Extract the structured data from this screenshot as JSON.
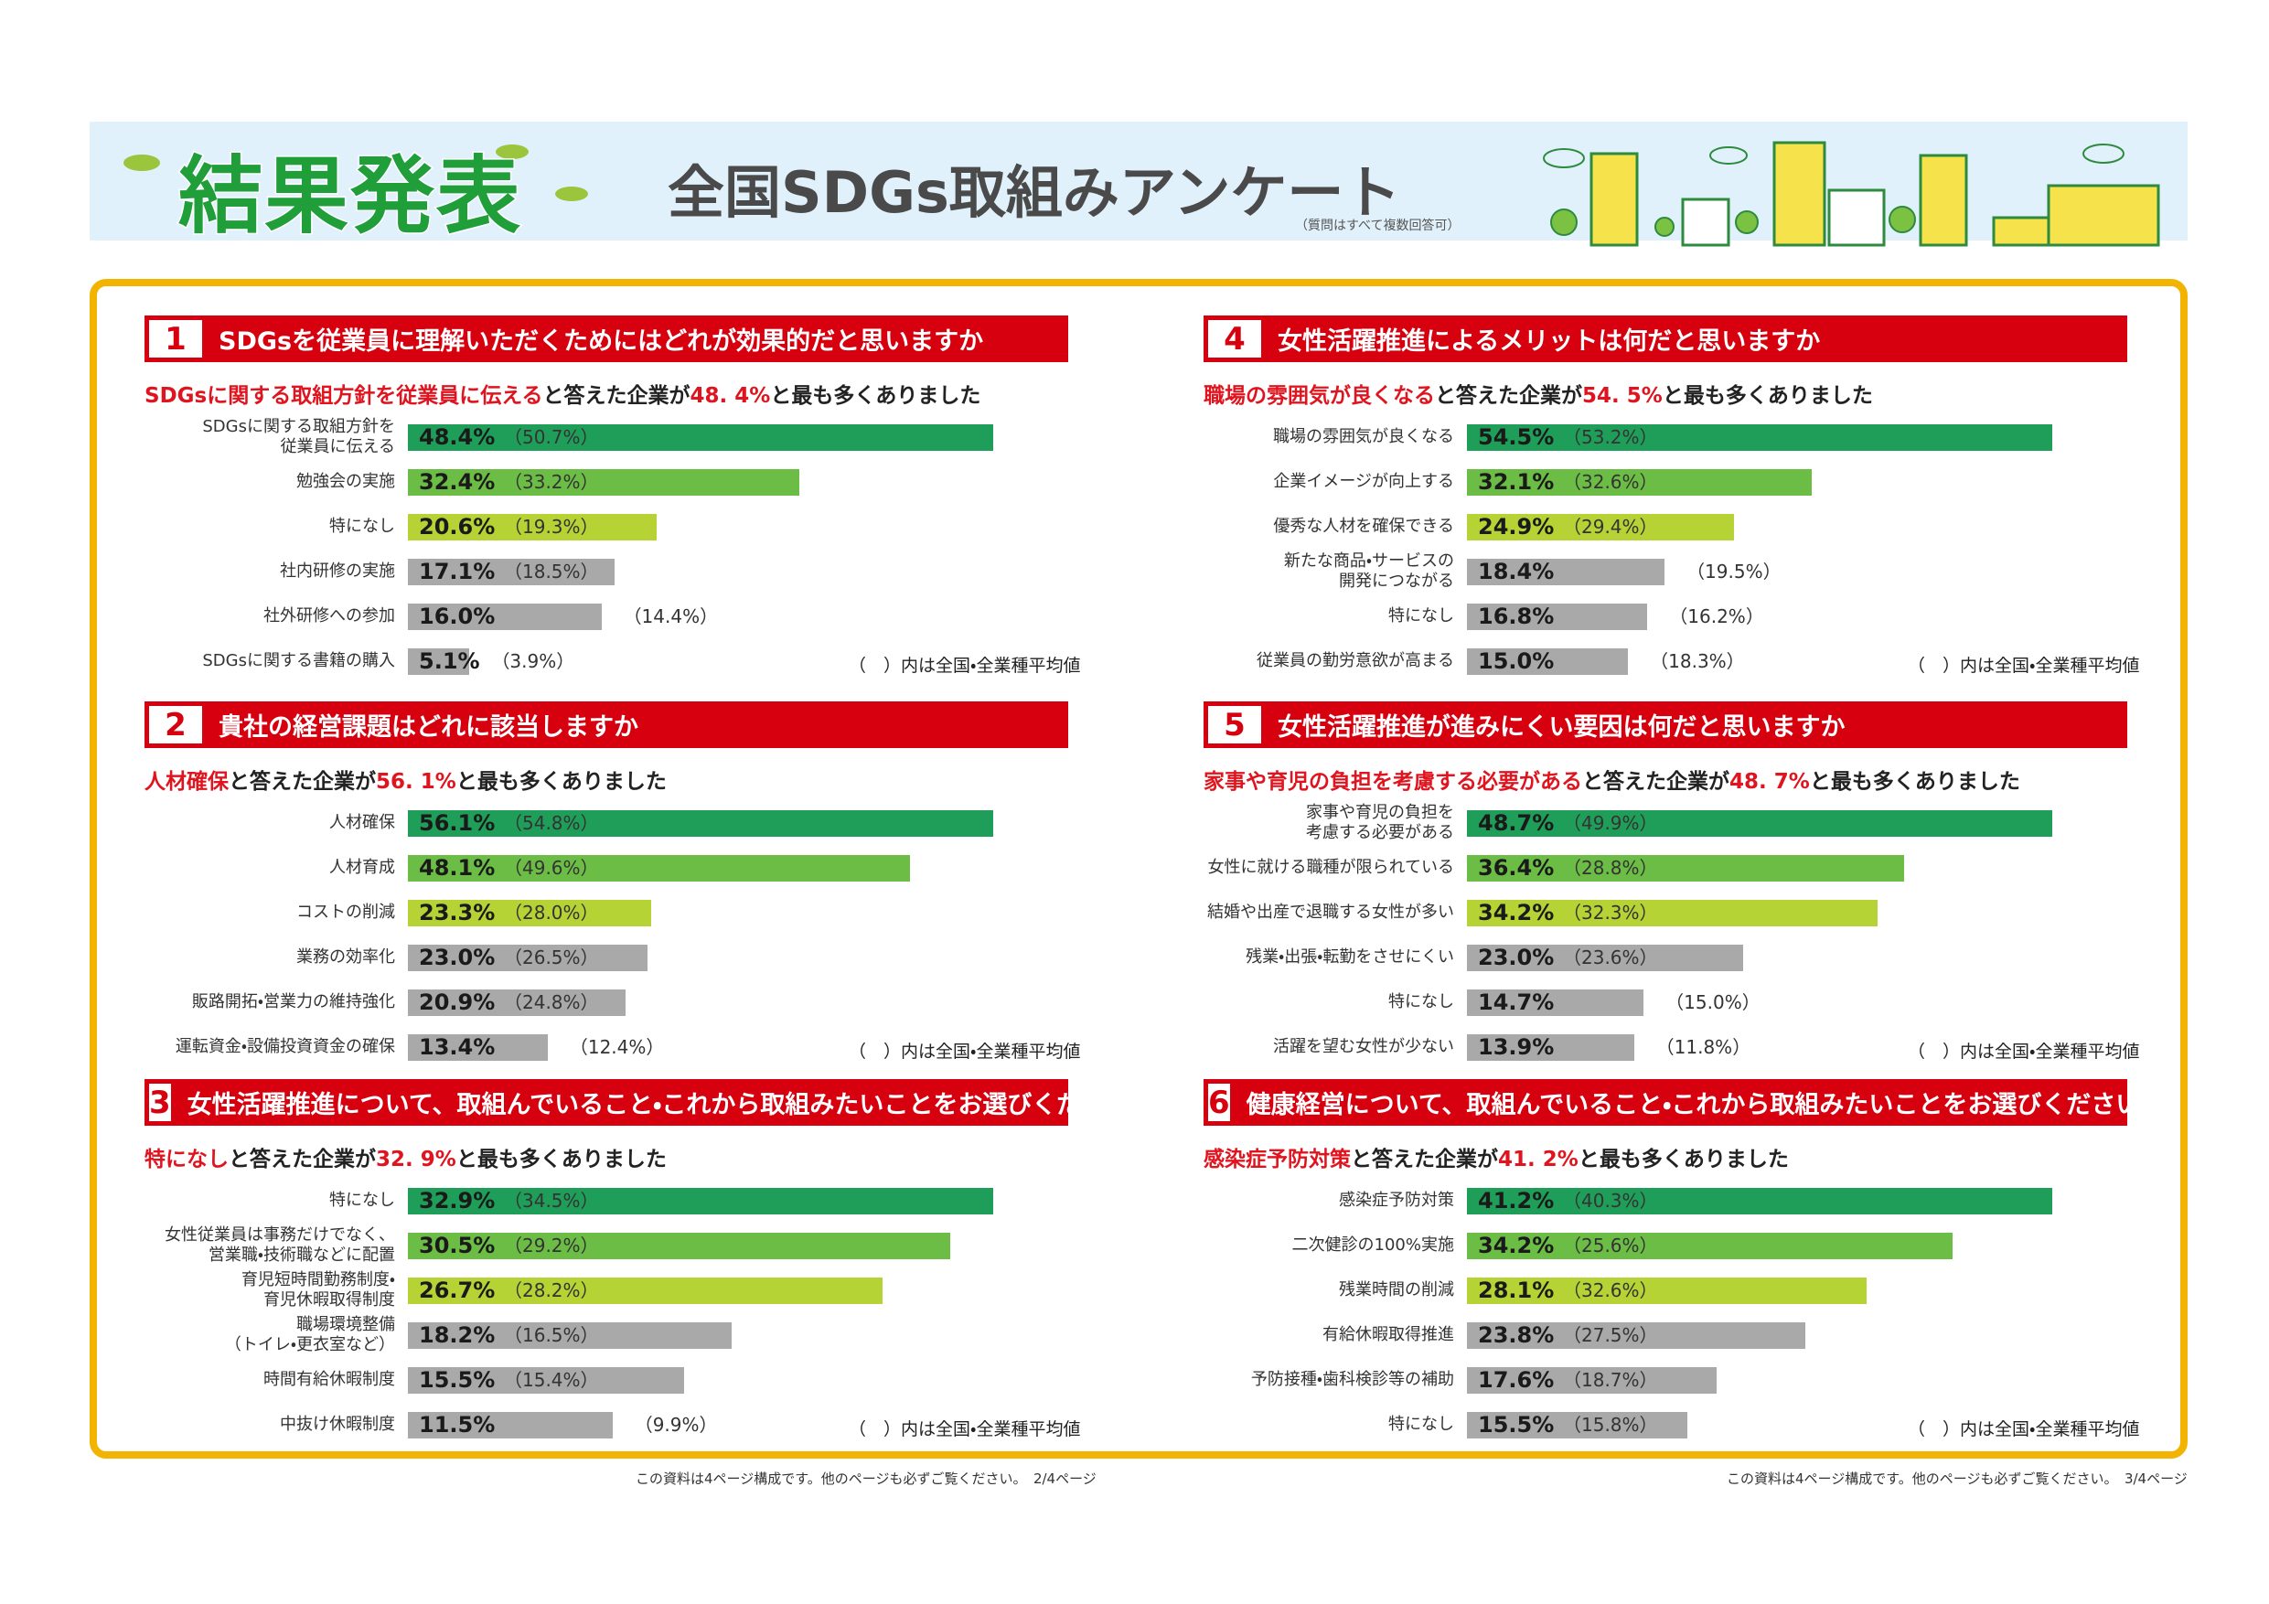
{
  "header": {
    "title": "結果発表",
    "subtitle": "全国SDGs取組みアンケート",
    "note": "（質問はすべて複数回答可）"
  },
  "footer": [
    "この資料は4ページ構成です。他のページも必ずご覧ください。　2/4ページ",
    "この資料は4ページ構成です。他のページも必ずご覧ください。　3/4ページ"
  ],
  "chart_data": [
    {
      "type": "bar",
      "number": 1,
      "title": "SDGsを従業員に理解いただくためにはどれが効果的だと思いますか",
      "lead": [
        "SDGsに関する取組方針を従業員に伝える",
        "と答えた企業が",
        "48. 4%",
        "と最も多くありました"
      ],
      "categories": [
        "SDGsに関する取組方針を\n従業員に伝える",
        "勉強会の実施",
        "特になし",
        "社内研修の実施",
        "社外研修への参加",
        "SDGsに関する書籍の購入"
      ],
      "values": [
        48.4,
        32.4,
        20.6,
        17.1,
        16.0,
        5.1
      ],
      "value_labels": [
        "48.4%",
        "32.4%",
        "20.6%",
        "17.1%",
        "16.0%",
        "5.1%"
      ],
      "averages": [
        50.7,
        33.2,
        19.3,
        18.5,
        14.4,
        3.9
      ],
      "average_labels": [
        "（50.7%）",
        "（33.2%）",
        "（19.3%）",
        "（18.5%）",
        "（14.4%）",
        "（3.9%）"
      ],
      "colors": [
        "#1f9e59",
        "#6cbd45",
        "#b6d336",
        "#a9a9a9",
        "#a9a9a9",
        "#a9a9a9"
      ],
      "note": "（　）内は全国・全業種平均値"
    },
    {
      "type": "bar",
      "number": 2,
      "title": "貴社の経営課題はどれに該当しますか",
      "lead": [
        "人材確保",
        "と答えた企業が",
        "56. 1%",
        "と最も多くありました"
      ],
      "categories": [
        "人材確保",
        "人材育成",
        "コストの削減",
        "業務の効率化",
        "販路開拓・営業力の維持強化",
        "運転資金・設備投資資金の確保"
      ],
      "values": [
        56.1,
        48.1,
        23.3,
        23.0,
        20.9,
        13.4
      ],
      "value_labels": [
        "56.1%",
        "48.1%",
        "23.3%",
        "23.0%",
        "20.9%",
        "13.4%"
      ],
      "averages": [
        54.8,
        49.6,
        28.0,
        26.5,
        24.8,
        12.4
      ],
      "average_labels": [
        "（54.8%）",
        "（49.6%）",
        "（28.0%）",
        "（26.5%）",
        "（24.8%）",
        "（12.4%）"
      ],
      "colors": [
        "#1f9e59",
        "#6cbd45",
        "#b6d336",
        "#a9a9a9",
        "#a9a9a9",
        "#a9a9a9"
      ],
      "note": "（　）内は全国・全業種平均値"
    },
    {
      "type": "bar",
      "number": 3,
      "title": "女性活躍推進について、取組んでいること・これから取組みたいことをお選びください",
      "lead": [
        "特になし",
        "と答えた企業が",
        "32. 9%",
        "と最も多くありました"
      ],
      "categories": [
        "特になし",
        "女性従業員は事務だけでなく、\n営業職・技術職などに配置",
        "育児短時間勤務制度・\n育児休暇取得制度",
        "職場環境整備\n（トイレ・更衣室など）",
        "時間有給休暇制度",
        "中抜け休暇制度"
      ],
      "values": [
        32.9,
        30.5,
        26.7,
        18.2,
        15.5,
        11.5
      ],
      "value_labels": [
        "32.9%",
        "30.5%",
        "26.7%",
        "18.2%",
        "15.5%",
        "11.5%"
      ],
      "averages": [
        34.5,
        29.2,
        28.2,
        16.5,
        15.4,
        9.9
      ],
      "average_labels": [
        "（34.5%）",
        "（29.2%）",
        "（28.2%）",
        "（16.5%）",
        "（15.4%）",
        "（9.9%）"
      ],
      "colors": [
        "#1f9e59",
        "#6cbd45",
        "#b6d336",
        "#a9a9a9",
        "#a9a9a9",
        "#a9a9a9"
      ],
      "note": "（　）内は全国・全業種平均値"
    },
    {
      "type": "bar",
      "number": 4,
      "title": "女性活躍推進によるメリットは何だと思いますか",
      "lead": [
        "職場の雰囲気が良くなる",
        "と答えた企業が",
        "54. 5%",
        "と最も多くありました"
      ],
      "categories": [
        "職場の雰囲気が良くなる",
        "企業イメージが向上する",
        "優秀な人材を確保できる",
        "新たな商品・サービスの\n開発につながる",
        "特になし",
        "従業員の勤労意欲が高まる"
      ],
      "values": [
        54.5,
        32.1,
        24.9,
        18.4,
        16.8,
        15.0
      ],
      "value_labels": [
        "54.5%",
        "32.1%",
        "24.9%",
        "18.4%",
        "16.8%",
        "15.0%"
      ],
      "averages": [
        53.2,
        32.6,
        29.4,
        19.5,
        16.2,
        18.3
      ],
      "average_labels": [
        "（53.2%）",
        "（32.6%）",
        "（29.4%）",
        "（19.5%）",
        "（16.2%）",
        "（18.3%）"
      ],
      "colors": [
        "#1f9e59",
        "#6cbd45",
        "#b6d336",
        "#a9a9a9",
        "#a9a9a9",
        "#a9a9a9"
      ],
      "note": "（　）内は全国・全業種平均値"
    },
    {
      "type": "bar",
      "number": 5,
      "title": "女性活躍推進が進みにくい要因は何だと思いますか",
      "lead": [
        "家事や育児の負担を考慮する必要がある",
        "と答えた企業が",
        "48. 7%",
        "と最も多くありました"
      ],
      "categories": [
        "家事や育児の負担を\n考慮する必要がある",
        "女性に就ける職種が限られている",
        "結婚や出産で退職する女性が多い",
        "残業・出張・転勤をさせにくい",
        "特になし",
        "活躍を望む女性が少ない"
      ],
      "values": [
        48.7,
        36.4,
        34.2,
        23.0,
        14.7,
        13.9
      ],
      "value_labels": [
        "48.7%",
        "36.4%",
        "34.2%",
        "23.0%",
        "14.7%",
        "13.9%"
      ],
      "averages": [
        49.9,
        28.8,
        32.3,
        23.6,
        15.0,
        11.8
      ],
      "average_labels": [
        "（49.9%）",
        "（28.8%）",
        "（32.3%）",
        "（23.6%）",
        "（15.0%）",
        "（11.8%）"
      ],
      "colors": [
        "#1f9e59",
        "#6cbd45",
        "#b6d336",
        "#a9a9a9",
        "#a9a9a9",
        "#a9a9a9"
      ],
      "note": "（　）内は全国・全業種平均値"
    },
    {
      "type": "bar",
      "number": 6,
      "title": "健康経営について、取組んでいること・これから取組みたいことをお選びください",
      "lead": [
        "感染症予防対策",
        "と答えた企業が",
        "41. 2%",
        "と最も多くありました"
      ],
      "categories": [
        "感染症予防対策",
        "二次健診の100%実施",
        "残業時間の削減",
        "有給休暇取得推進",
        "予防接種・歯科検診等の補助",
        "特になし"
      ],
      "values": [
        41.2,
        34.2,
        28.1,
        23.8,
        17.6,
        15.5
      ],
      "value_labels": [
        "41.2%",
        "34.2%",
        "28.1%",
        "23.8%",
        "17.6%",
        "15.5%"
      ],
      "averages": [
        40.3,
        25.6,
        32.6,
        27.5,
        18.7,
        15.8
      ],
      "average_labels": [
        "（40.3%）",
        "（25.6%）",
        "（32.6%）",
        "（27.5%）",
        "（18.7%）",
        "（15.8%）"
      ],
      "colors": [
        "#1f9e59",
        "#6cbd45",
        "#b6d336",
        "#a9a9a9",
        "#a9a9a9",
        "#a9a9a9"
      ],
      "note": "（　）内は全国・全業種平均値"
    }
  ]
}
